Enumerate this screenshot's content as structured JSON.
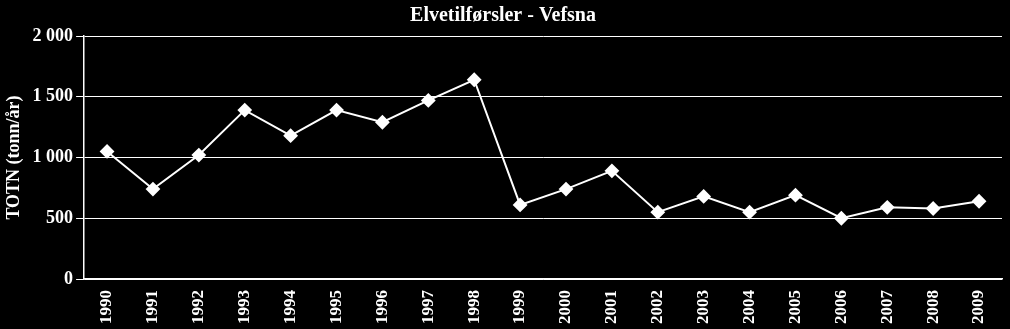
{
  "chart_data": {
    "type": "line",
    "title": "Elvetilførsler - Vefsna",
    "y_label": "TOTN (tonn/år)",
    "categories": [
      "1990",
      "1991",
      "1992",
      "1993",
      "1994",
      "1995",
      "1996",
      "1997",
      "1998",
      "1999",
      "2000",
      "2001",
      "2002",
      "2003",
      "2004",
      "2005",
      "2006",
      "2007",
      "2008",
      "2009"
    ],
    "values": [
      1050,
      740,
      1020,
      1390,
      1180,
      1390,
      1290,
      1470,
      1640,
      610,
      740,
      890,
      550,
      680,
      550,
      690,
      500,
      590,
      580,
      640
    ],
    "color": "#ffffff",
    "marker": "diamond",
    "line_style": "solid",
    "ylim": [
      0,
      2000
    ],
    "yticks": [
      0,
      500,
      {
        "value": 1000,
        "label": "1 000"
      },
      {
        "value": 1500,
        "label": "1 500"
      },
      {
        "value": 2000,
        "label": "2 000"
      }
    ],
    "grid": true
  }
}
